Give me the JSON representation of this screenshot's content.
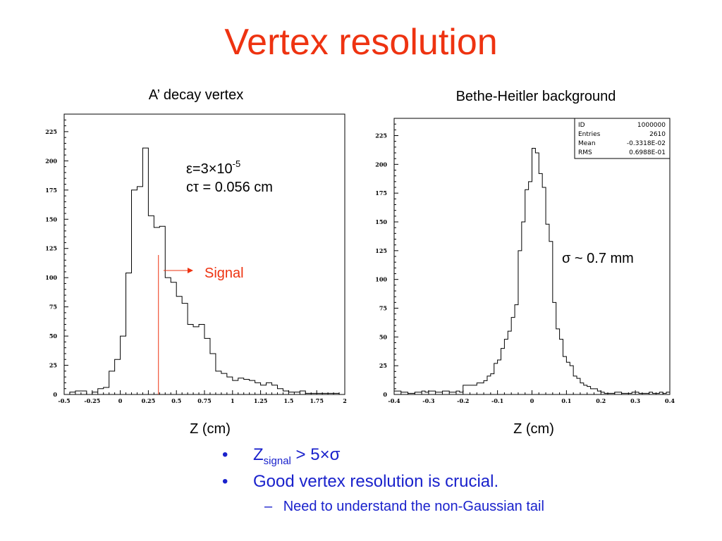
{
  "slide": {
    "title": "Vertex resolution",
    "left_caption": "A’ decay vertex",
    "right_caption": "Bethe-Heitler background",
    "left_xunit": "Z (cm)",
    "right_xunit": "Z (cm)"
  },
  "annotations": {
    "eps_prefix": "ε=3×10",
    "eps_exp": "-5",
    "ctau": "cτ = 0.056 cm",
    "signal": "Signal",
    "sigma": "σ ~ 0.7 mm"
  },
  "stats_box": {
    "rows": [
      {
        "label": "ID",
        "value": "1000000"
      },
      {
        "label": "Entries",
        "value": "2610"
      },
      {
        "label": "Mean",
        "value": "-0.3318E-02"
      },
      {
        "label": "RMS",
        "value": "0.6988E-01"
      }
    ]
  },
  "bullets": {
    "item1_z": "Z",
    "item1_sub": "signal",
    "item1_rest": " > 5×σ",
    "item2": "Good vertex resolution is crucial.",
    "sub1": "Need to understand the non-Gaussian tail",
    "bullet_glyph": "•",
    "dash_glyph": "–"
  },
  "colors": {
    "title": "#ee3311",
    "signal": "#ee3311",
    "bullets": "#1a22cc"
  },
  "chart_data": [
    {
      "type": "histogram",
      "title": "",
      "xlabel": "Z (cm)",
      "ylabel": "",
      "xlim": [
        -0.5,
        2
      ],
      "ylim": [
        0,
        240
      ],
      "xticks": [
        "-0.5",
        "-0.25",
        "0",
        "0.25",
        "0.5",
        "0.75",
        "1",
        "1.25",
        "1.5",
        "1.75",
        "2"
      ],
      "yticks": [
        "0",
        "25",
        "50",
        "75",
        "100",
        "125",
        "150",
        "175",
        "200",
        "225"
      ],
      "bin_width": 0.05,
      "bin_start": -0.5,
      "values": [
        0,
        2,
        3,
        3,
        0,
        2,
        5,
        6,
        20,
        30,
        50,
        104,
        175,
        178,
        211,
        153,
        143,
        144,
        100,
        96,
        84,
        78,
        60,
        58,
        60,
        48,
        35,
        20,
        18,
        15,
        12,
        14,
        13,
        12,
        10,
        8,
        10,
        8,
        5,
        3,
        2,
        2,
        3,
        1,
        1,
        1,
        1,
        1,
        1,
        0
      ],
      "cut_line_x": 0.34,
      "annotation_signal": "Signal",
      "stats": false
    },
    {
      "type": "histogram",
      "title": "",
      "xlabel": "Z (cm)",
      "ylabel": "",
      "xlim": [
        -0.4,
        0.4
      ],
      "ylim": [
        0,
        240
      ],
      "xticks": [
        "-0.4",
        "-0.3",
        "-0.2",
        "-0.1",
        "0",
        "0.1",
        "0.2",
        "0.3",
        "0.4"
      ],
      "yticks": [
        "0",
        "25",
        "50",
        "75",
        "100",
        "125",
        "150",
        "175",
        "200",
        "225"
      ],
      "bin_width": 0.01,
      "bin_start": -0.4,
      "values": [
        3,
        3,
        2,
        2,
        1,
        1,
        2,
        2,
        3,
        2,
        3,
        3,
        2,
        2,
        3,
        3,
        2,
        2,
        3,
        2,
        8,
        8,
        8,
        8,
        10,
        10,
        12,
        16,
        18,
        27,
        30,
        40,
        48,
        55,
        67,
        78,
        125,
        150,
        178,
        185,
        214,
        210,
        192,
        180,
        148,
        133,
        80,
        57,
        48,
        33,
        28,
        25,
        16,
        14,
        10,
        8,
        7,
        5,
        5,
        3,
        2,
        1,
        1,
        1,
        2,
        2,
        1,
        1,
        1,
        2,
        2,
        1,
        1,
        1,
        2,
        1,
        1,
        2,
        1,
        2
      ],
      "stats": {
        "ID": "1000000",
        "Entries": "2610",
        "Mean": "-0.3318E-02",
        "RMS": "0.6988E-01"
      }
    }
  ]
}
